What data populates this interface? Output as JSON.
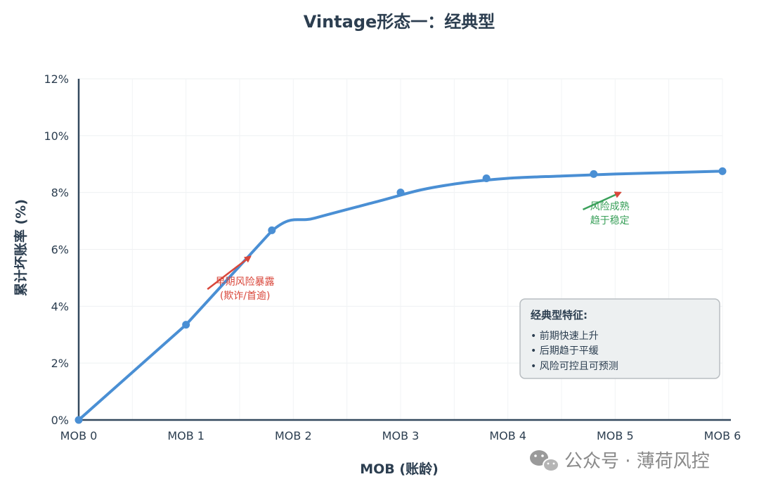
{
  "chart_data": {
    "type": "line",
    "title": "Vintage形态一：经典型",
    "xlabel": "MOB (账龄)",
    "ylabel": "累计坏账率 (%)",
    "categories": [
      "MOB 0",
      "MOB 1",
      "MOB 2",
      "MOB 3",
      "MOB 4",
      "MOB 5",
      "MOB 6"
    ],
    "ylim": [
      0,
      12
    ],
    "yticks": [
      "0%",
      "2%",
      "4%",
      "6%",
      "8%",
      "10%",
      "12%"
    ],
    "grid": true,
    "series": [
      {
        "name": "累计坏账率",
        "color": "#4a8fd4",
        "x": [
          0,
          1,
          2,
          3,
          4,
          5,
          6
        ],
        "values": [
          0,
          3.35,
          6.65,
          8.0,
          8.5,
          8.65,
          8.75
        ]
      }
    ],
    "curve": {
      "x": [
        0,
        1,
        1.8,
        2.2,
        2.8,
        3.2,
        3.6,
        4.0,
        4.5,
        5.0,
        5.5,
        6.0
      ],
      "values": [
        0,
        3.35,
        6.65,
        7.1,
        7.7,
        8.1,
        8.35,
        8.5,
        8.58,
        8.65,
        8.7,
        8.75
      ]
    },
    "points": {
      "x": [
        0,
        1,
        1.8,
        3.0,
        3.8,
        4.8,
        6.0
      ],
      "values": [
        0,
        3.35,
        6.67,
        8.0,
        8.5,
        8.65,
        8.75
      ]
    },
    "annotations": [
      {
        "lines": [
          "早期风险暴露",
          "(欺诈/首逾)"
        ],
        "color": "#d9473b",
        "x": 1.55,
        "y": 4.75,
        "arrow_from": [
          1.2,
          4.6
        ],
        "arrow_to": [
          1.6,
          5.75
        ]
      },
      {
        "lines": [
          "风险成熟",
          "趋于稳定"
        ],
        "color": "#3aa05a",
        "x": 4.95,
        "y": 7.4,
        "arrow_from": [
          4.7,
          7.4
        ],
        "arrow_to": [
          5.05,
          8.0
        ]
      }
    ],
    "legend_box": {
      "title": "经典型特征:",
      "items": [
        "• 前期快速上升",
        "• 后期趋于平缓",
        "• 风险可控且可预测"
      ]
    }
  },
  "watermark": "公众号 · 薄荷风控"
}
